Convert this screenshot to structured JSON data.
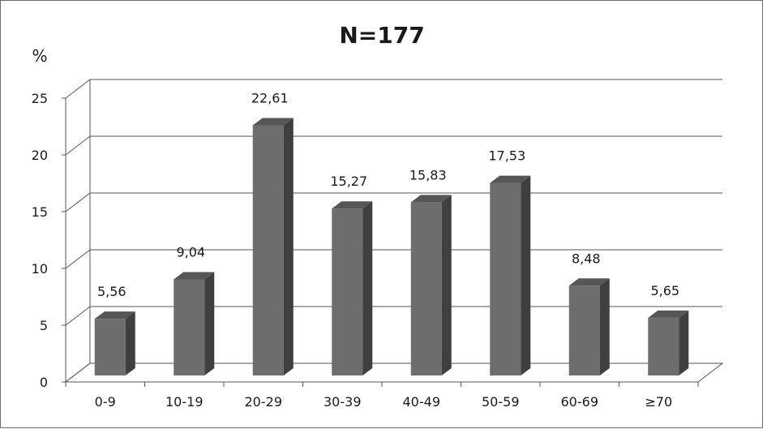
{
  "chart_data": {
    "type": "bar",
    "title": "N=177",
    "ylabel": "%",
    "xlabel": "",
    "categories": [
      "0-9",
      "10-19",
      "20-29",
      "30-39",
      "40-49",
      "50-59",
      "60-69",
      "≥70"
    ],
    "values": [
      5.56,
      9.04,
      22.61,
      15.27,
      15.83,
      17.53,
      8.48,
      5.65
    ],
    "data_labels": [
      "5,56",
      "9,04",
      "22,61",
      "15,27",
      "15,83",
      "17,53",
      "8,48",
      "5,65"
    ],
    "yticks": [
      "0",
      "5",
      "10",
      "15",
      "20",
      "25"
    ],
    "ylim": [
      0,
      25
    ],
    "grid": true,
    "style": "3d-column",
    "bar_color": "#6d6d6d",
    "bar_side_color": "#3f3f3f",
    "bar_top_color": "#565656"
  }
}
